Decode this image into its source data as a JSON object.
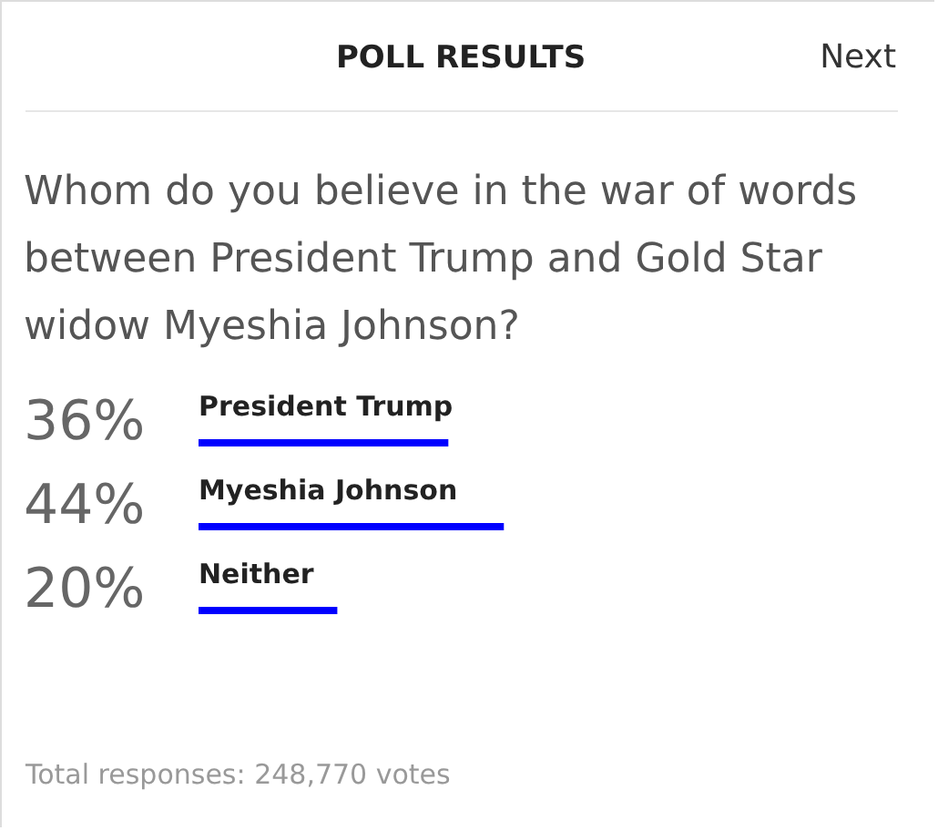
{
  "chart_data": {
    "type": "bar",
    "orientation": "horizontal",
    "title": "POLL RESULTS",
    "subtitle": "Whom do you believe in the war of words between President Trump and Gold Star widow Myeshia Johnson?",
    "categories": [
      "President Trump",
      "Myeshia Johnson",
      "Neither"
    ],
    "values": [
      36,
      44,
      20
    ],
    "value_labels": [
      "36%",
      "44%",
      "20%"
    ],
    "color": "#0000ff",
    "annotations": [
      "Next",
      "Total responses: 248,770 votes"
    ]
  }
}
